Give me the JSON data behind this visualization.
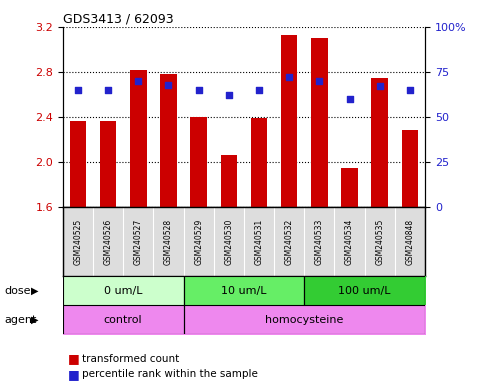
{
  "title": "GDS3413 / 62093",
  "samples": [
    "GSM240525",
    "GSM240526",
    "GSM240527",
    "GSM240528",
    "GSM240529",
    "GSM240530",
    "GSM240531",
    "GSM240532",
    "GSM240533",
    "GSM240534",
    "GSM240535",
    "GSM240848"
  ],
  "transformed_count": [
    2.37,
    2.37,
    2.82,
    2.78,
    2.4,
    2.06,
    2.39,
    3.13,
    3.1,
    1.95,
    2.75,
    2.29
  ],
  "percentile_rank": [
    65,
    65,
    70,
    68,
    65,
    62,
    65,
    72,
    70,
    60,
    67,
    65
  ],
  "ylim_left": [
    1.6,
    3.2
  ],
  "ylim_right": [
    0,
    100
  ],
  "yticks_left": [
    1.6,
    2.0,
    2.4,
    2.8,
    3.2
  ],
  "yticks_right": [
    0,
    25,
    50,
    75,
    100
  ],
  "bar_color": "#cc0000",
  "dot_color": "#2222cc",
  "dose_groups": [
    {
      "label": "0 um/L",
      "start": 0,
      "end": 4,
      "color": "#ccffcc"
    },
    {
      "label": "10 um/L",
      "start": 4,
      "end": 8,
      "color": "#66ee66"
    },
    {
      "label": "100 um/L",
      "start": 8,
      "end": 12,
      "color": "#33cc33"
    }
  ],
  "agent_groups": [
    {
      "label": "control",
      "start": 0,
      "end": 4,
      "color": "#ee88ee"
    },
    {
      "label": "homocysteine",
      "start": 4,
      "end": 12,
      "color": "#ee88ee"
    }
  ],
  "legend_bar_label": "transformed count",
  "legend_dot_label": "percentile rank within the sample",
  "xlabel_dose": "dose",
  "xlabel_agent": "agent",
  "background_color": "#ffffff",
  "sample_box_color": "#dddddd",
  "tick_label_color_left": "#cc0000",
  "tick_label_color_right": "#2222cc"
}
